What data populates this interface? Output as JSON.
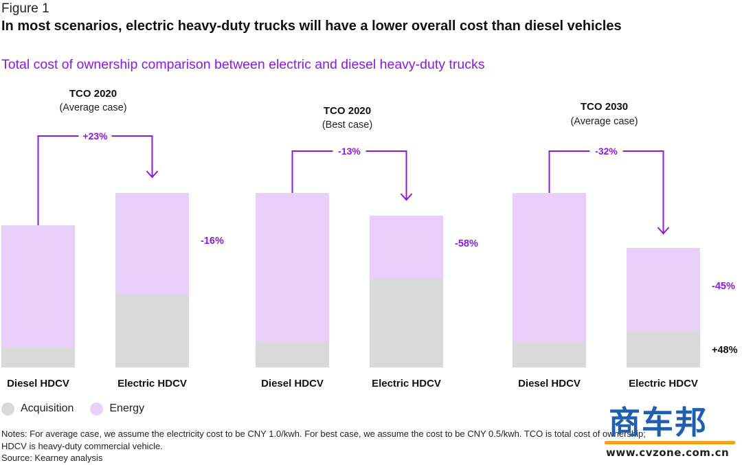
{
  "header": {
    "figure_label": "Figure 1",
    "headline": "In most scenarios, electric heavy-duty trucks will have a lower overall cost than diesel vehicles",
    "subtitle": "Total cost of ownership comparison between electric and diesel heavy-duty trucks"
  },
  "colors": {
    "acquisition": "#d9d9d9",
    "energy": "#e8d0fb",
    "accent": "#8c19e0",
    "text": "#111111"
  },
  "chart_data": {
    "type": "bar",
    "stacked": true,
    "stack_order": [
      "Acquisition",
      "Energy"
    ],
    "legend": [
      "Acquisition",
      "Energy"
    ],
    "legend_position": "bottom-left",
    "grid": false,
    "groups": [
      {
        "title": "TCO 2020",
        "subtitle": "(Average case)",
        "bars": [
          {
            "label": "Diesel HDCV",
            "acquisition": 30,
            "energy": 177
          },
          {
            "label": "Electric HDCV",
            "acquisition": 106,
            "energy": 148
          }
        ],
        "total_change_label": "+23%",
        "energy_change_label": "-16%",
        "acquisition_change_label": ""
      },
      {
        "title": "TCO 2020",
        "subtitle": "(Best case)",
        "bars": [
          {
            "label": "Diesel HDCV",
            "acquisition": 38,
            "energy": 216
          },
          {
            "label": "Electric HDCV",
            "acquisition": 130,
            "energy": 91
          }
        ],
        "total_change_label": "-13%",
        "energy_change_label": "-58%",
        "acquisition_change_label": ""
      },
      {
        "title": "TCO 2030",
        "subtitle": "(Average case)",
        "bars": [
          {
            "label": "Diesel HDCV",
            "acquisition": 37,
            "energy": 217
          },
          {
            "label": "Electric HDCV",
            "acquisition": 54,
            "energy": 120
          }
        ],
        "total_change_label": "-32%",
        "energy_change_label": "-45%",
        "acquisition_change_label": "+48%"
      }
    ]
  },
  "legend": {
    "acquisition": "Acquisition",
    "energy": "Energy"
  },
  "notes": {
    "line1": "Notes: For average case, we assume the electricity cost to be CNY 1.0/kwh. For best case, we assume the cost to be CNY 0.5/kwh. TCO is total cost of ownership;",
    "line2": "HDCV is heavy-duty commercial vehicle.",
    "line3": "Source: Kearney analysis"
  },
  "watermark": {
    "brand": "商车邦",
    "url": "www.cvzone.com.cn"
  }
}
